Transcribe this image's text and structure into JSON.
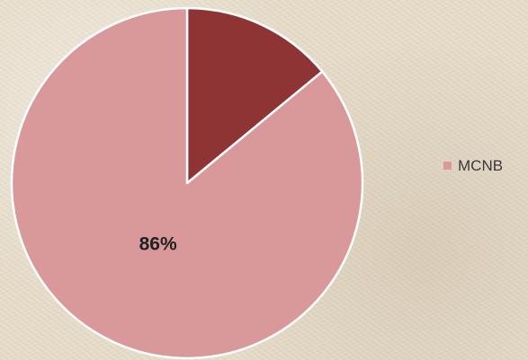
{
  "chart_data": {
    "type": "pie",
    "slices": [
      {
        "label": "",
        "value": 14,
        "color": "#8e3434"
      },
      {
        "label": "MCNB",
        "value": 86,
        "color": "#d9989a"
      }
    ],
    "data_labels": [
      "",
      "86%"
    ],
    "legend": {
      "position": "right",
      "entries": [
        "MCNB"
      ]
    }
  }
}
